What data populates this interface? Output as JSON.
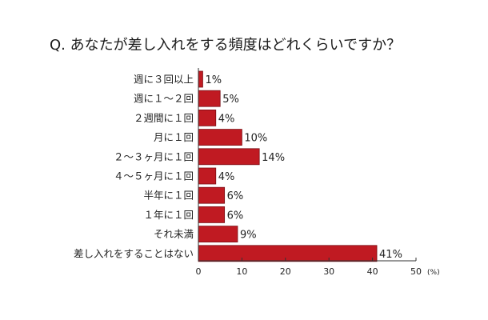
{
  "chart_data": {
    "type": "bar",
    "orientation": "horizontal",
    "title": "Q. あなたが差し入れをする頻度はどれくらいですか？",
    "categories": [
      "週に３回以上",
      "週に１～２回",
      "２週間に１回",
      "月に１回",
      "２～３ヶ月に１回",
      "４～５ヶ月に１回",
      "半年に１回",
      "１年に１回",
      "それ未満",
      "差し入れをすることはない"
    ],
    "values": [
      1,
      5,
      4,
      10,
      14,
      4,
      6,
      6,
      9,
      41
    ],
    "value_labels": [
      "1%",
      "5%",
      "4%",
      "10%",
      "14%",
      "4%",
      "6%",
      "6%",
      "9%",
      "41%"
    ],
    "xlim": [
      0,
      50
    ],
    "x_ticks": [
      "0",
      "10",
      "20",
      "30",
      "40",
      "50"
    ],
    "x_unit": "(%)",
    "xlabel": "",
    "ylabel": "",
    "grid": false,
    "bar_color": "#c01a22",
    "bar_edge_color": "#7a0e14"
  }
}
